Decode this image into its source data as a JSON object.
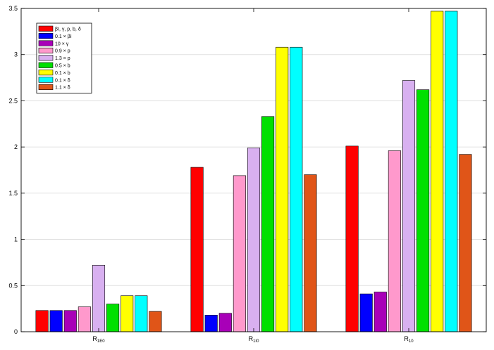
{
  "chart_data": {
    "type": "bar",
    "title": "",
    "xlabel": "",
    "ylabel": "",
    "ylim": [
      0,
      3.5
    ],
    "yticks": [
      "0",
      "0.5",
      "1",
      "1.5",
      "2",
      "2.5",
      "3",
      "3.5"
    ],
    "grid": "horizontal",
    "legend_position": "top-left",
    "categories": [
      {
        "main": "R",
        "sub": "1E0"
      },
      {
        "main": "R",
        "sub": "1I0"
      },
      {
        "main": "R",
        "sub": "10"
      }
    ],
    "series": [
      {
        "name": "βI, γ, p, b, δ",
        "color": "#ff0000",
        "values": [
          0.23,
          1.78,
          2.01
        ]
      },
      {
        "name": "0.1 × βI",
        "color": "#0000ff",
        "values": [
          0.23,
          0.18,
          0.41
        ]
      },
      {
        "name": "10 × γ",
        "color": "#a800b8",
        "values": [
          0.23,
          0.2,
          0.43
        ]
      },
      {
        "name": "0.9 × p",
        "color": "#ff99cc",
        "values": [
          0.27,
          1.69,
          1.96
        ]
      },
      {
        "name": "1.3 × p",
        "color": "#d8b0f0",
        "values": [
          0.72,
          1.99,
          2.72
        ]
      },
      {
        "name": "0.5 × b",
        "color": "#00e000",
        "values": [
          0.3,
          2.33,
          2.62
        ]
      },
      {
        "name": "0.1 × b",
        "color": "#ffff00",
        "values": [
          0.39,
          3.08,
          3.47
        ]
      },
      {
        "name": "0.1 × δ",
        "color": "#00ffff",
        "values": [
          0.39,
          3.08,
          3.47
        ]
      },
      {
        "name": "1.1 × δ",
        "color": "#e05518",
        "values": [
          0.22,
          1.7,
          1.92
        ]
      }
    ]
  }
}
